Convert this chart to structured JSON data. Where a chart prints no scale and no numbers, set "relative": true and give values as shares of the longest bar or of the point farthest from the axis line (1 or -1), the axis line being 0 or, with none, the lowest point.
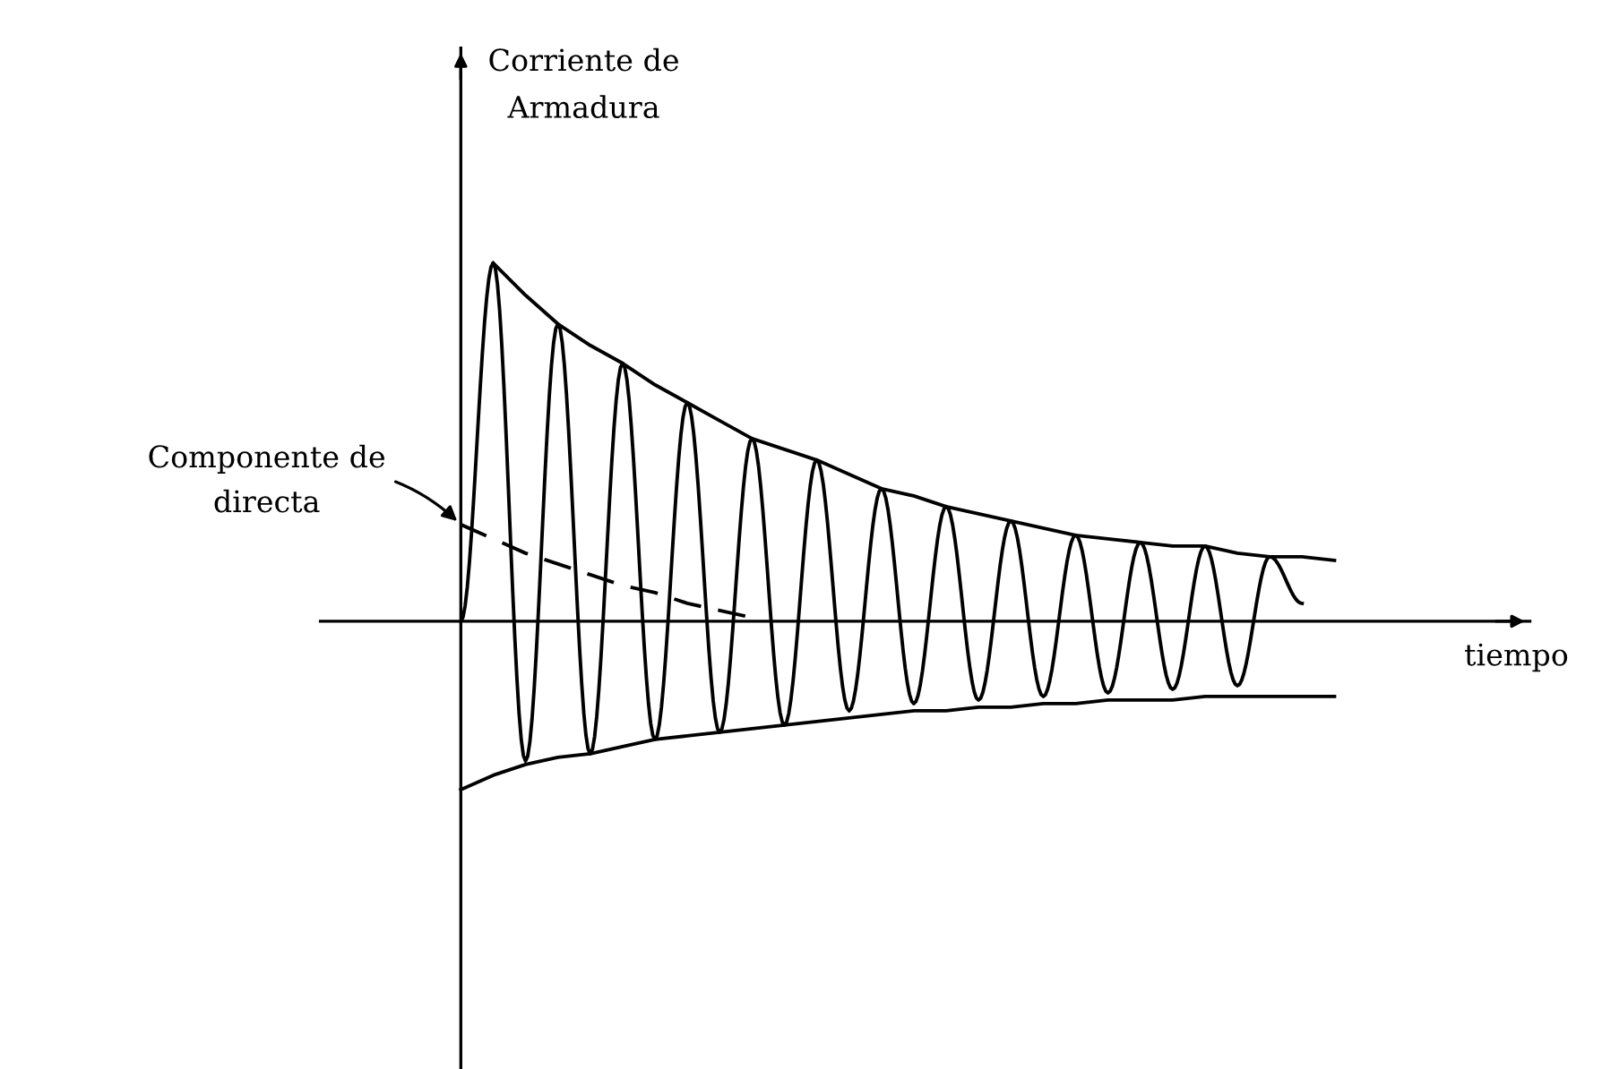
{
  "chart_data": {
    "type": "line",
    "relative": true,
    "xlabel": "tiempo",
    "ylabel": "Corriente de\nArmadura",
    "annotations": [
      "Componente de\ndirecta"
    ],
    "categories": [
      null,
      null,
      null,
      null,
      null,
      null,
      null,
      null,
      null,
      null,
      null,
      null,
      null,
      null,
      null,
      null,
      null,
      null,
      null,
      null,
      null,
      null,
      null,
      null,
      null,
      null,
      null,
      null
    ],
    "series": [
      {
        "color": "#000000",
        "line_style": "solid",
        "values": [
          0,
          1.0,
          -0.39,
          0.83,
          -0.37,
          0.72,
          -0.33,
          0.61,
          -0.31,
          0.51,
          -0.29,
          0.45,
          -0.25,
          0.37,
          -0.23,
          0.32,
          -0.22,
          0.28,
          -0.21,
          0.24,
          -0.2,
          0.22,
          -0.19,
          0.21,
          -0.18,
          0.18,
          0.05,
          null
        ]
      },
      {
        "color": "#000000",
        "line_style": "solid",
        "values": [
          null,
          1.0,
          0.91,
          0.83,
          0.77,
          0.72,
          0.66,
          0.61,
          0.56,
          0.51,
          0.48,
          0.45,
          0.41,
          0.37,
          0.35,
          0.32,
          0.3,
          0.28,
          0.26,
          0.24,
          0.23,
          0.22,
          0.21,
          0.21,
          0.19,
          0.18,
          0.18,
          0.17
        ]
      },
      {
        "color": "#000000",
        "line_style": "solid",
        "values": [
          -0.47,
          -0.43,
          -0.4,
          -0.38,
          -0.37,
          -0.35,
          -0.33,
          -0.32,
          -0.31,
          -0.3,
          -0.29,
          -0.28,
          -0.27,
          -0.26,
          -0.25,
          -0.25,
          -0.24,
          -0.24,
          -0.23,
          -0.23,
          -0.22,
          -0.22,
          -0.22,
          -0.21,
          -0.21,
          -0.21,
          -0.21,
          -0.21
        ]
      },
      {
        "color": "#000000",
        "line_style": "dashed",
        "values": [
          0.27,
          0.23,
          0.19,
          0.16,
          0.13,
          0.1,
          0.08,
          0.05,
          0.03,
          0.01,
          null,
          null,
          null,
          null,
          null,
          null,
          null,
          null,
          null,
          null,
          null,
          null,
          null,
          null,
          null,
          null,
          null,
          null
        ]
      }
    ]
  }
}
